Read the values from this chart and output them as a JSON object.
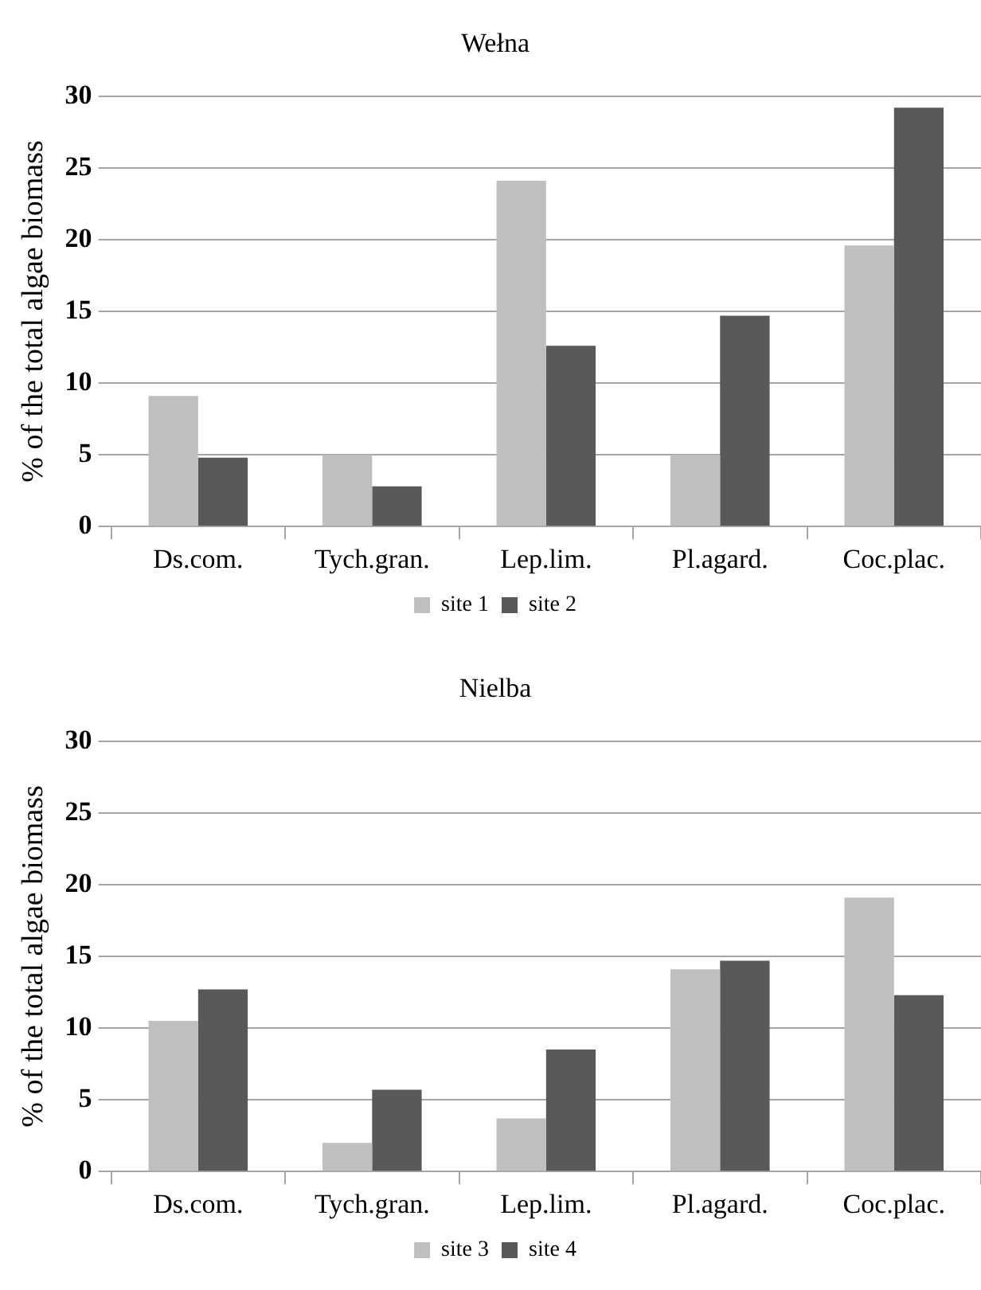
{
  "chart_data": [
    {
      "type": "bar",
      "title": "Wełna",
      "ylabel": "% of the total algae biomass",
      "categories": [
        "Ds.com.",
        "Tych.gran.",
        "Lep.lim.",
        "Pl.agard.",
        "Coc.plac."
      ],
      "series": [
        {
          "name": "site 1",
          "color": "#bfbfbf",
          "values": [
            9.1,
            5.0,
            24.1,
            5.0,
            19.6
          ]
        },
        {
          "name": "site 2",
          "color": "#595959",
          "values": [
            4.8,
            2.8,
            12.6,
            14.7,
            29.2
          ]
        }
      ],
      "ylim": [
        0,
        30
      ],
      "yticks": [
        0,
        5,
        10,
        15,
        20,
        25,
        30
      ],
      "grid": "y",
      "legend": "bottom"
    },
    {
      "type": "bar",
      "title": "Nielba",
      "ylabel": "% of the total algae biomass",
      "categories": [
        "Ds.com.",
        "Tych.gran.",
        "Lep.lim.",
        "Pl.agard.",
        "Coc.plac."
      ],
      "series": [
        {
          "name": "site 3",
          "color": "#bfbfbf",
          "values": [
            10.5,
            2.0,
            3.7,
            14.1,
            19.1
          ]
        },
        {
          "name": "site 4",
          "color": "#595959",
          "values": [
            12.7,
            5.7,
            8.5,
            14.7,
            12.3
          ]
        }
      ],
      "ylim": [
        0,
        30
      ],
      "yticks": [
        0,
        5,
        10,
        15,
        20,
        25,
        30
      ],
      "grid": "y",
      "legend": "bottom"
    }
  ]
}
